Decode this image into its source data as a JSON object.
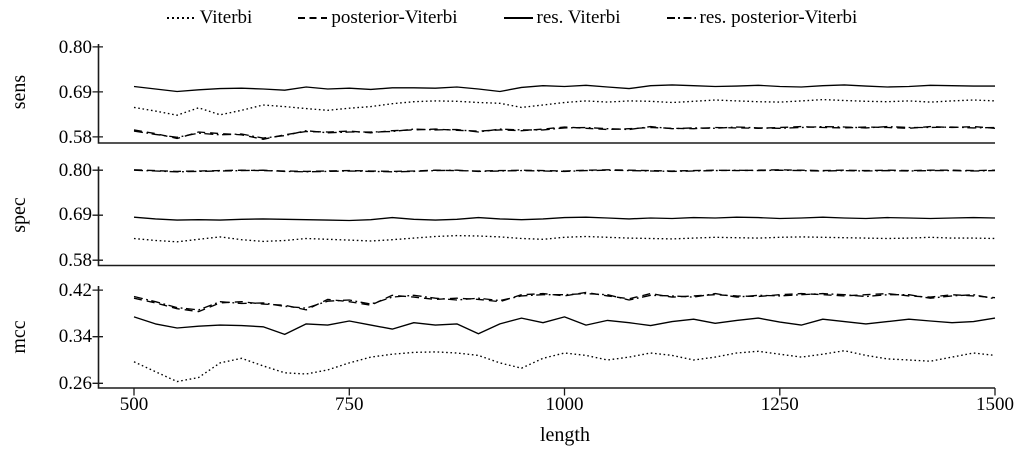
{
  "figure": {
    "background": "#ffffff",
    "line_color": "#000000"
  },
  "chart_data": {
    "type": "line",
    "x_label": "length",
    "x_ticks": [
      "500",
      "750",
      "1000",
      "1250",
      "1500"
    ],
    "x_range": [
      500,
      1500
    ],
    "grid": false,
    "legend_position": "top",
    "legend": [
      {
        "name": "Viterbi",
        "style": "dotted"
      },
      {
        "name": "posterior-Viterbi",
        "style": "dashed"
      },
      {
        "name": "res. Viterbi",
        "style": "solid"
      },
      {
        "name": "res. posterior-Viterbi",
        "style": "dashdot"
      }
    ],
    "x_values": [
      500,
      525,
      550,
      575,
      600,
      625,
      650,
      675,
      700,
      725,
      750,
      775,
      800,
      825,
      850,
      875,
      900,
      925,
      950,
      975,
      1000,
      1025,
      1050,
      1075,
      1100,
      1125,
      1150,
      1175,
      1200,
      1225,
      1250,
      1275,
      1300,
      1325,
      1350,
      1375,
      1400,
      1425,
      1450,
      1475,
      1500
    ],
    "subplots": [
      {
        "ylabel": "sens",
        "y_ticks": [
          "0.80",
          "0.69",
          "0.58"
        ],
        "ylim": [
          0.565,
          0.807
        ],
        "series": [
          {
            "name": "Viterbi",
            "style": "dotted",
            "values": [
              0.652,
              0.643,
              0.633,
              0.651,
              0.634,
              0.645,
              0.658,
              0.654,
              0.649,
              0.645,
              0.65,
              0.654,
              0.661,
              0.666,
              0.668,
              0.667,
              0.664,
              0.662,
              0.652,
              0.658,
              0.664,
              0.668,
              0.665,
              0.668,
              0.667,
              0.664,
              0.667,
              0.67,
              0.668,
              0.666,
              0.665,
              0.668,
              0.671,
              0.669,
              0.667,
              0.666,
              0.668,
              0.665,
              0.668,
              0.67,
              0.668
            ]
          },
          {
            "name": "posterior-Viterbi",
            "style": "dashed",
            "values": [
              0.597,
              0.588,
              0.576,
              0.592,
              0.588,
              0.585,
              0.574,
              0.585,
              0.593,
              0.592,
              0.594,
              0.59,
              0.595,
              0.597,
              0.599,
              0.596,
              0.594,
              0.597,
              0.595,
              0.599,
              0.604,
              0.601,
              0.598,
              0.6,
              0.603,
              0.601,
              0.6,
              0.603,
              0.602,
              0.601,
              0.603,
              0.605,
              0.603,
              0.602,
              0.604,
              0.603,
              0.601,
              0.605,
              0.603,
              0.605,
              0.601
            ]
          },
          {
            "name": "res. Viterbi",
            "style": "solid",
            "values": [
              0.703,
              0.697,
              0.691,
              0.695,
              0.698,
              0.699,
              0.697,
              0.694,
              0.702,
              0.697,
              0.699,
              0.696,
              0.7,
              0.7,
              0.699,
              0.702,
              0.697,
              0.691,
              0.701,
              0.705,
              0.703,
              0.706,
              0.702,
              0.698,
              0.705,
              0.707,
              0.705,
              0.703,
              0.704,
              0.706,
              0.703,
              0.702,
              0.705,
              0.707,
              0.704,
              0.702,
              0.703,
              0.706,
              0.705,
              0.704,
              0.704
            ]
          },
          {
            "name": "res. posterior-Viterbi",
            "style": "dashdot",
            "values": [
              0.594,
              0.586,
              0.579,
              0.589,
              0.585,
              0.587,
              0.577,
              0.583,
              0.595,
              0.59,
              0.592,
              0.592,
              0.593,
              0.599,
              0.597,
              0.598,
              0.592,
              0.599,
              0.597,
              0.597,
              0.602,
              0.603,
              0.6,
              0.598,
              0.605,
              0.6,
              0.602,
              0.601,
              0.604,
              0.602,
              0.601,
              0.603,
              0.605,
              0.604,
              0.602,
              0.605,
              0.603,
              0.603,
              0.604,
              0.602,
              0.603
            ]
          }
        ]
      },
      {
        "ylabel": "spec",
        "y_ticks": [
          "0.80",
          "0.69",
          "0.58"
        ],
        "ylim": [
          0.567,
          0.809
        ],
        "series": [
          {
            "name": "Viterbi",
            "style": "dotted",
            "values": [
              0.633,
              0.628,
              0.625,
              0.631,
              0.637,
              0.63,
              0.626,
              0.628,
              0.633,
              0.631,
              0.629,
              0.627,
              0.63,
              0.634,
              0.638,
              0.64,
              0.639,
              0.637,
              0.633,
              0.631,
              0.636,
              0.638,
              0.636,
              0.634,
              0.633,
              0.632,
              0.634,
              0.636,
              0.635,
              0.634,
              0.636,
              0.637,
              0.636,
              0.635,
              0.634,
              0.633,
              0.634,
              0.636,
              0.634,
              0.634,
              0.633
            ]
          },
          {
            "name": "posterior-Viterbi",
            "style": "dashed",
            "values": [
              0.801,
              0.799,
              0.797,
              0.798,
              0.799,
              0.8,
              0.799,
              0.798,
              0.797,
              0.798,
              0.799,
              0.798,
              0.797,
              0.798,
              0.8,
              0.799,
              0.798,
              0.799,
              0.8,
              0.799,
              0.798,
              0.8,
              0.801,
              0.8,
              0.799,
              0.798,
              0.799,
              0.8,
              0.799,
              0.8,
              0.801,
              0.8,
              0.799,
              0.8,
              0.799,
              0.8,
              0.799,
              0.8,
              0.8,
              0.799,
              0.8
            ]
          },
          {
            "name": "res. Viterbi",
            "style": "solid",
            "values": [
              0.685,
              0.681,
              0.678,
              0.679,
              0.678,
              0.68,
              0.681,
              0.68,
              0.679,
              0.678,
              0.677,
              0.679,
              0.684,
              0.68,
              0.678,
              0.68,
              0.684,
              0.681,
              0.679,
              0.681,
              0.684,
              0.685,
              0.683,
              0.681,
              0.683,
              0.682,
              0.684,
              0.683,
              0.685,
              0.684,
              0.682,
              0.683,
              0.685,
              0.683,
              0.682,
              0.684,
              0.683,
              0.682,
              0.683,
              0.684,
              0.683
            ]
          },
          {
            "name": "res. posterior-Viterbi",
            "style": "dashdot",
            "values": [
              0.8,
              0.798,
              0.796,
              0.797,
              0.798,
              0.799,
              0.8,
              0.797,
              0.796,
              0.797,
              0.798,
              0.797,
              0.796,
              0.797,
              0.799,
              0.8,
              0.797,
              0.798,
              0.799,
              0.798,
              0.797,
              0.799,
              0.8,
              0.799,
              0.798,
              0.797,
              0.798,
              0.799,
              0.8,
              0.799,
              0.8,
              0.799,
              0.798,
              0.799,
              0.798,
              0.799,
              0.798,
              0.799,
              0.799,
              0.798,
              0.799
            ]
          }
        ]
      },
      {
        "ylabel": "mcc",
        "y_ticks": [
          "0.42",
          "0.34",
          "0.26"
        ],
        "ylim": [
          0.252,
          0.427
        ],
        "series": [
          {
            "name": "Viterbi",
            "style": "dotted",
            "values": [
              0.297,
              0.28,
              0.263,
              0.27,
              0.295,
              0.303,
              0.29,
              0.278,
              0.276,
              0.283,
              0.295,
              0.305,
              0.31,
              0.313,
              0.314,
              0.312,
              0.308,
              0.295,
              0.286,
              0.303,
              0.312,
              0.308,
              0.3,
              0.305,
              0.312,
              0.308,
              0.3,
              0.305,
              0.312,
              0.315,
              0.31,
              0.305,
              0.31,
              0.316,
              0.308,
              0.302,
              0.3,
              0.298,
              0.305,
              0.312,
              0.308
            ]
          },
          {
            "name": "posterior-Viterbi",
            "style": "dashed",
            "values": [
              0.406,
              0.398,
              0.388,
              0.383,
              0.398,
              0.4,
              0.396,
              0.394,
              0.386,
              0.404,
              0.4,
              0.394,
              0.411,
              0.408,
              0.404,
              0.406,
              0.404,
              0.4,
              0.412,
              0.414,
              0.41,
              0.416,
              0.41,
              0.405,
              0.414,
              0.408,
              0.41,
              0.412,
              0.41,
              0.409,
              0.412,
              0.414,
              0.412,
              0.41,
              0.412,
              0.414,
              0.41,
              0.408,
              0.412,
              0.41,
              0.407
            ]
          },
          {
            "name": "res. Viterbi",
            "style": "solid",
            "values": [
              0.374,
              0.362,
              0.355,
              0.358,
              0.36,
              0.359,
              0.357,
              0.344,
              0.362,
              0.36,
              0.367,
              0.36,
              0.353,
              0.364,
              0.36,
              0.362,
              0.345,
              0.362,
              0.372,
              0.364,
              0.374,
              0.36,
              0.368,
              0.364,
              0.359,
              0.366,
              0.37,
              0.363,
              0.368,
              0.372,
              0.365,
              0.36,
              0.37,
              0.366,
              0.362,
              0.366,
              0.37,
              0.367,
              0.364,
              0.366,
              0.372
            ]
          },
          {
            "name": "res. posterior-Viterbi",
            "style": "dashdot",
            "values": [
              0.409,
              0.4,
              0.39,
              0.386,
              0.4,
              0.397,
              0.398,
              0.392,
              0.389,
              0.401,
              0.403,
              0.396,
              0.408,
              0.411,
              0.406,
              0.403,
              0.406,
              0.402,
              0.41,
              0.412,
              0.412,
              0.414,
              0.412,
              0.403,
              0.411,
              0.41,
              0.408,
              0.414,
              0.408,
              0.411,
              0.41,
              0.412,
              0.414,
              0.412,
              0.409,
              0.412,
              0.412,
              0.406,
              0.41,
              0.412,
              0.405
            ]
          }
        ]
      }
    ]
  }
}
